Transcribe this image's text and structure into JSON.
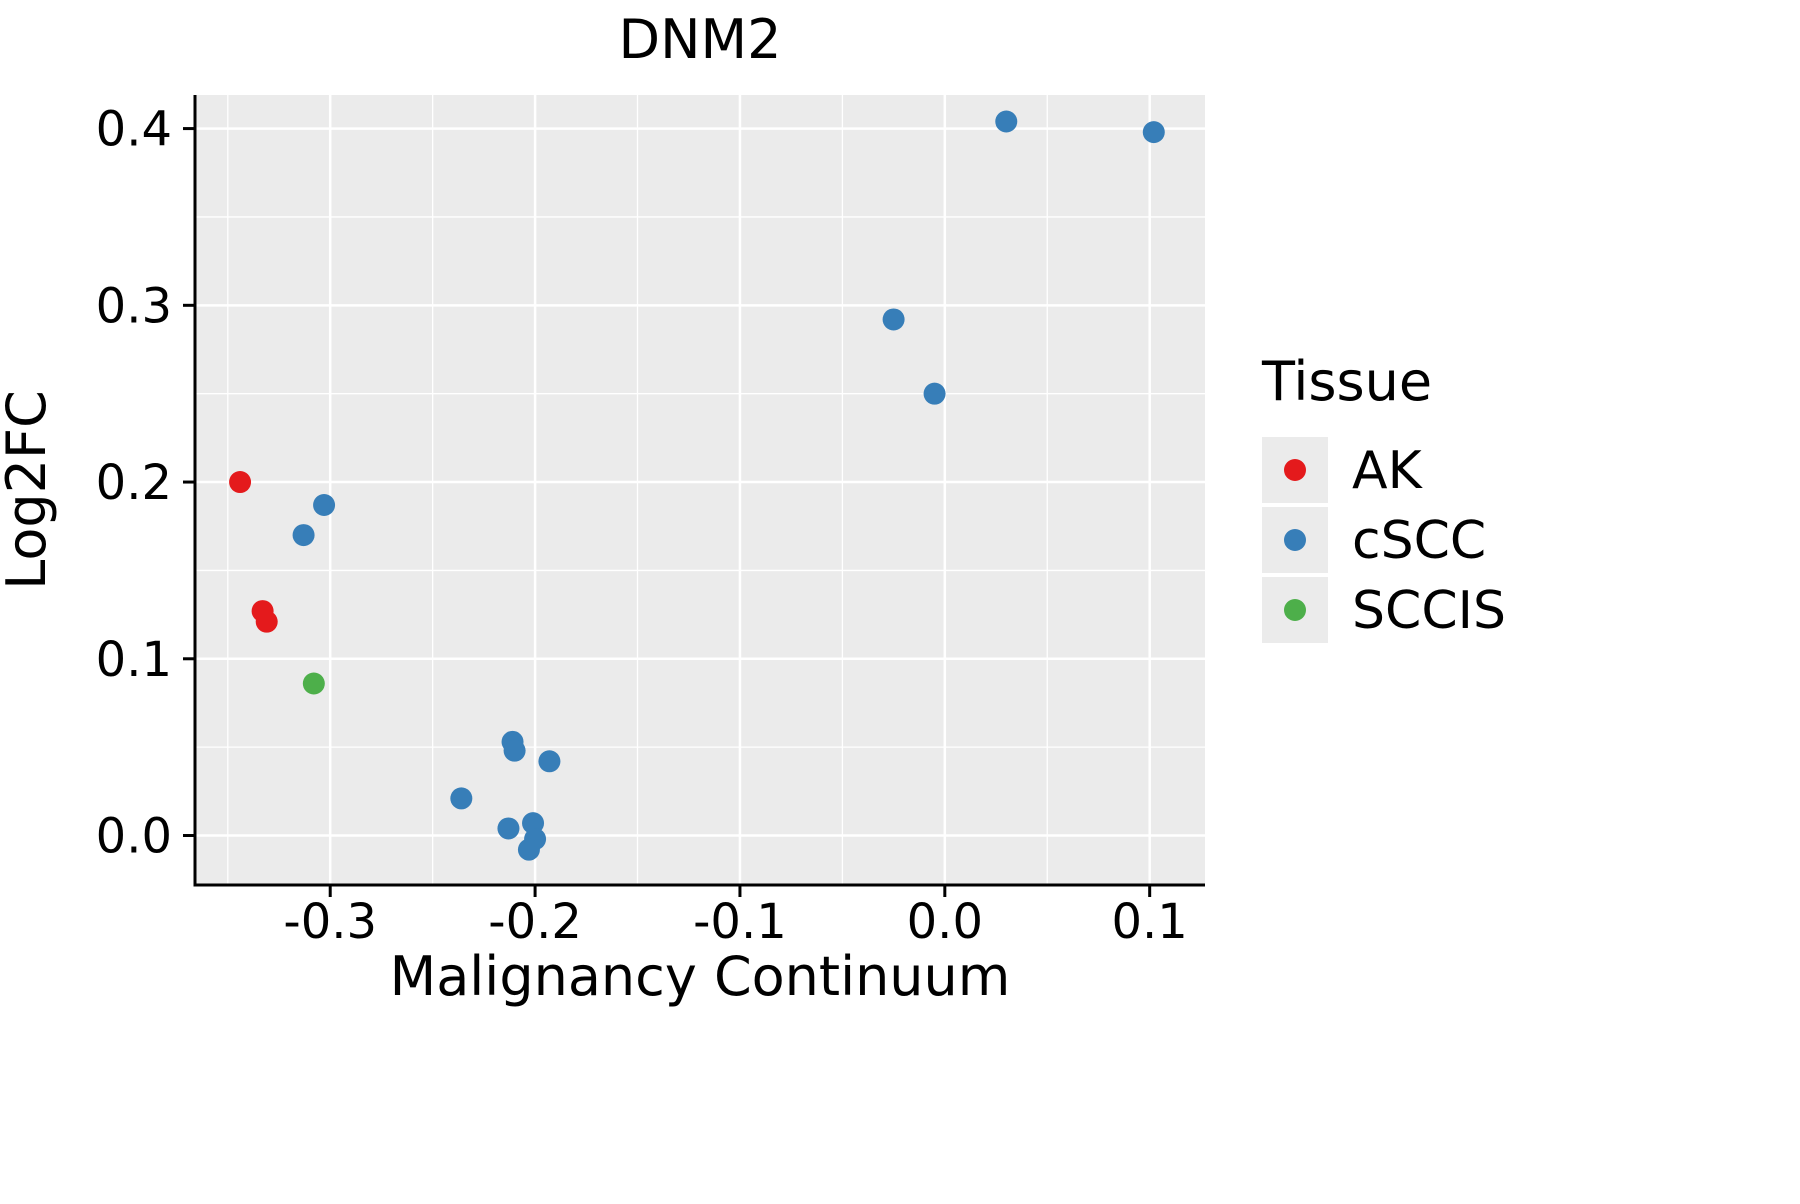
{
  "chart_data": {
    "type": "scatter",
    "title": "DNM2",
    "xlabel": "Malignancy Continuum",
    "ylabel": "Log2FC",
    "xlim": [
      -0.366,
      0.127
    ],
    "ylim": [
      -0.028,
      0.419
    ],
    "x_ticks": {
      "values": [
        -0.3,
        -0.2,
        -0.1,
        0.0,
        0.1
      ],
      "labels": [
        "-0.3",
        "-0.2",
        "-0.1",
        "0.0",
        "0.1"
      ]
    },
    "y_ticks": {
      "values": [
        0.0,
        0.1,
        0.2,
        0.3,
        0.4
      ],
      "labels": [
        "0.0",
        "0.1",
        "0.2",
        "0.3",
        "0.4"
      ]
    },
    "x_minor_ticks": [
      -0.35,
      -0.25,
      -0.15,
      -0.05,
      0.05
    ],
    "y_minor_ticks": [
      0.05,
      0.15,
      0.25,
      0.35
    ],
    "grid": true,
    "panel_background": "#EBEBEB",
    "grid_color": "#FFFFFF",
    "axis_color": "#000000",
    "legend": {
      "title": "Tissue",
      "position": "right",
      "key_background": "#EBEBEB"
    },
    "series": [
      {
        "name": "AK",
        "color": "#E41A1C",
        "points": [
          [
            -0.344,
            0.2
          ],
          [
            -0.333,
            0.127
          ],
          [
            -0.331,
            0.121
          ]
        ]
      },
      {
        "name": "cSCC",
        "color": "#377EB8",
        "points": [
          [
            -0.313,
            0.17
          ],
          [
            -0.303,
            0.187
          ],
          [
            -0.236,
            0.021
          ],
          [
            -0.211,
            0.053
          ],
          [
            -0.21,
            0.048
          ],
          [
            -0.193,
            0.042
          ],
          [
            -0.213,
            0.004
          ],
          [
            -0.201,
            0.007
          ],
          [
            -0.2,
            -0.002
          ],
          [
            -0.203,
            -0.008
          ],
          [
            -0.025,
            0.292
          ],
          [
            -0.005,
            0.25
          ],
          [
            0.03,
            0.404
          ],
          [
            0.102,
            0.398
          ]
        ]
      },
      {
        "name": "SCCIS",
        "color": "#4DAF4A",
        "points": [
          [
            -0.308,
            0.086
          ]
        ]
      }
    ]
  }
}
